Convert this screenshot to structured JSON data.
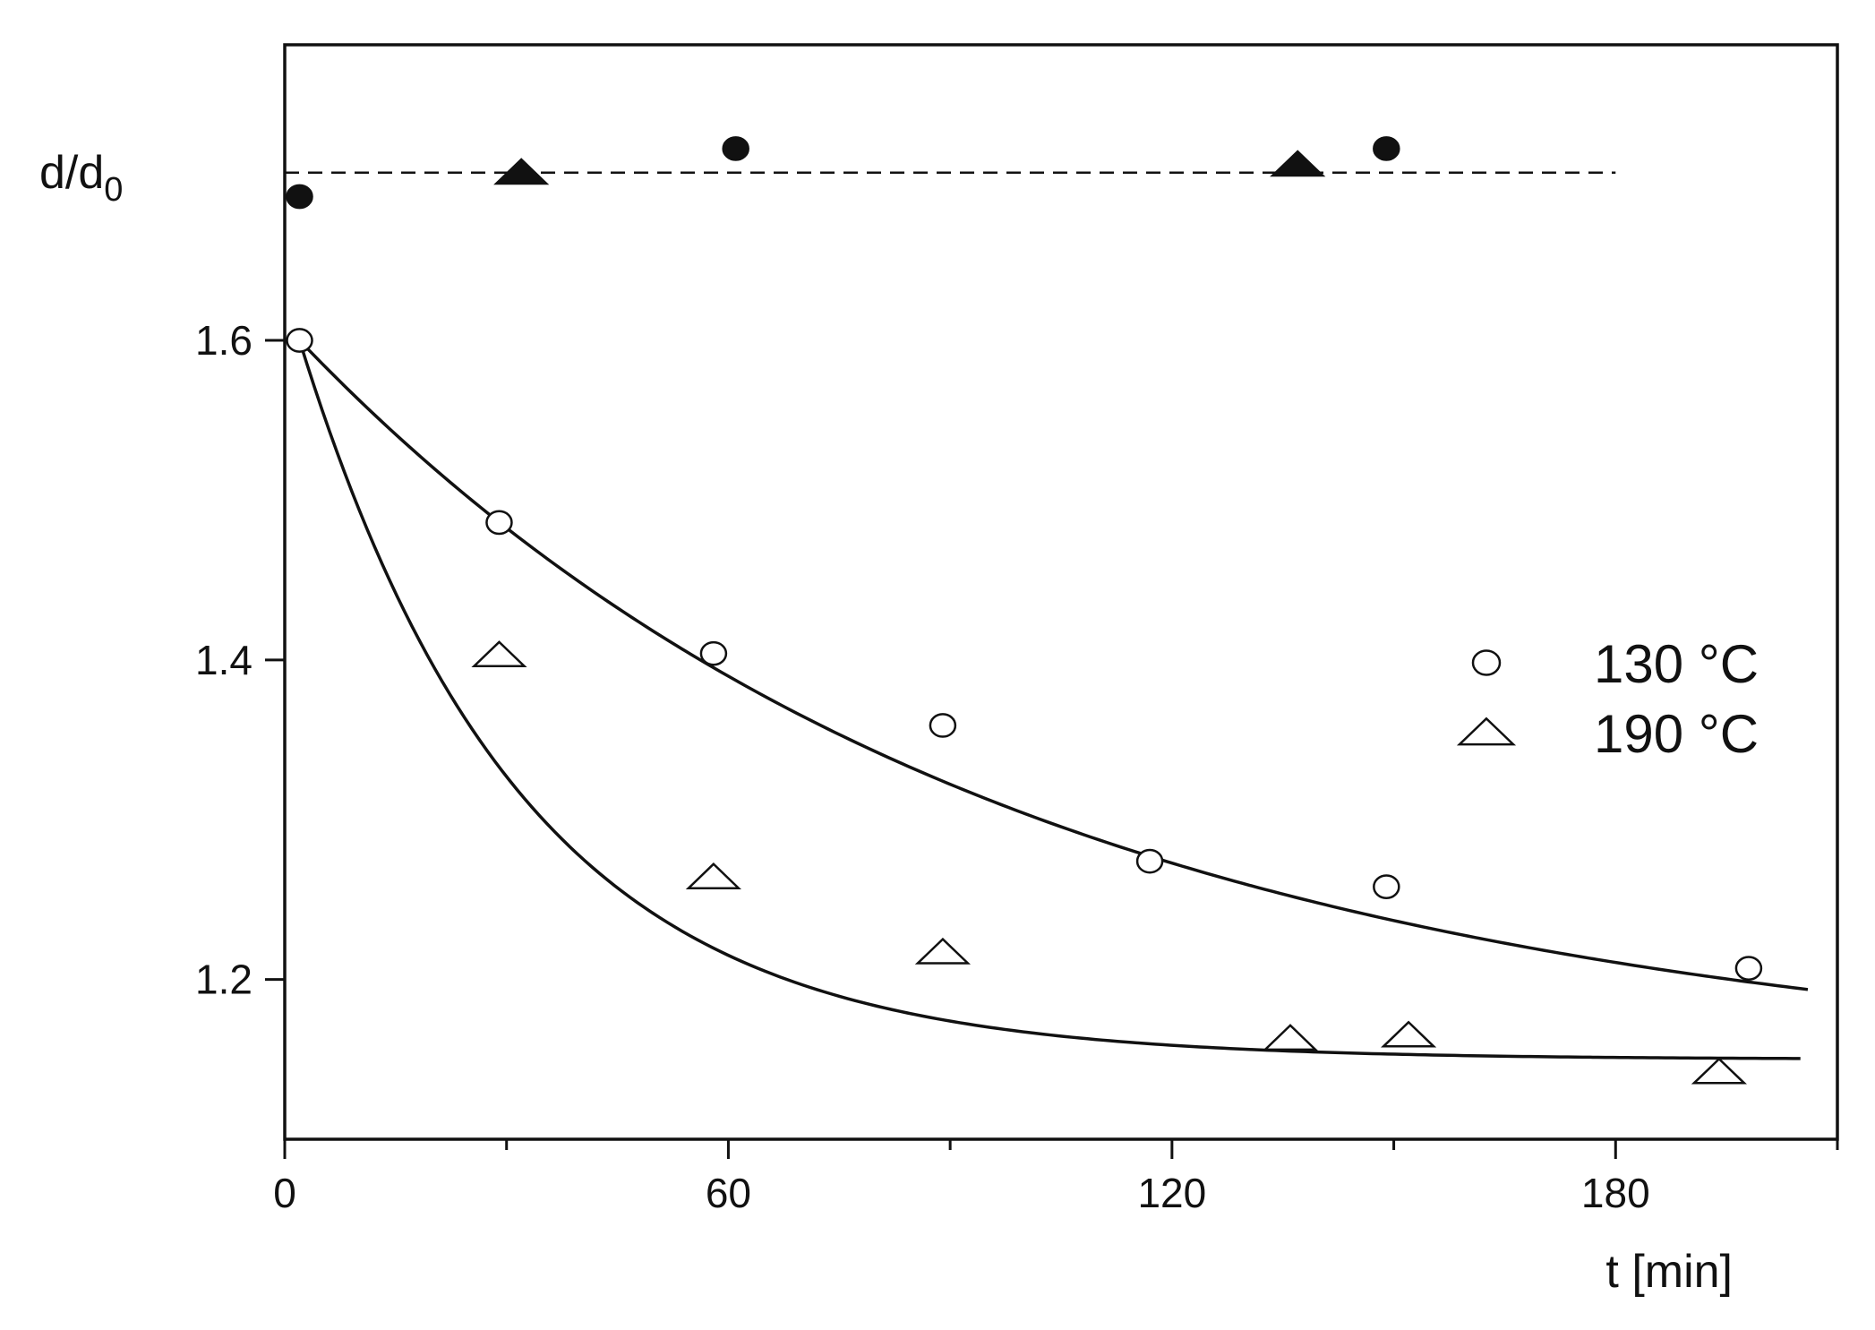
{
  "chart_data": {
    "type": "scatter",
    "title": "",
    "xlabel": "t [min]",
    "ylabel_main": "d/d",
    "ylabel_sub": "0",
    "xlim": [
      0,
      210
    ],
    "ylim": [
      1.1,
      1.785
    ],
    "x_ticks": [
      0,
      60,
      120,
      180
    ],
    "x_tick_labels": [
      "0",
      "60",
      "120",
      "180"
    ],
    "x_minor_ticks": [
      30,
      90,
      150,
      210
    ],
    "y_ticks": [
      1.2,
      1.4,
      1.6
    ],
    "y_tick_labels": [
      "1.2",
      "1.4",
      "1.6"
    ],
    "grid": false,
    "legend_position": "right",
    "series": [
      {
        "name": "130 °C",
        "marker": "open-circle",
        "x": [
          2,
          29,
          58,
          89,
          117,
          149,
          198
        ],
        "y": [
          1.6,
          1.486,
          1.404,
          1.359,
          1.274,
          1.258,
          1.207
        ],
        "fit": {
          "y0": 1.6,
          "A": 0.46,
          "tau": 95,
          "y_inf": 1.14,
          "x_end": 206
        }
      },
      {
        "name": "190 °C",
        "marker": "open-triangle",
        "x": [
          29,
          58,
          89,
          136,
          152,
          194
        ],
        "y": [
          1.403,
          1.264,
          1.217,
          1.163,
          1.165,
          1.142
        ],
        "fit": {
          "y0": 1.6,
          "A": 0.45,
          "tau": 30,
          "y_inf": 1.15,
          "x_end": 205
        }
      },
      {
        "name": "",
        "marker": "filled-circle",
        "x": [
          2,
          61,
          149
        ],
        "y": [
          1.69,
          1.72,
          1.72
        ]
      },
      {
        "name": "",
        "marker": "filled-triangle",
        "x": [
          32,
          137
        ],
        "y": [
          1.705,
          1.71
        ]
      }
    ],
    "reference_line": {
      "y": 1.705,
      "x_start": 0,
      "x_end": 180,
      "style": "dashed"
    },
    "colors": {
      "ink": "#111111",
      "marker_fill_open": "#ffffff",
      "background": "#ffffff"
    }
  }
}
